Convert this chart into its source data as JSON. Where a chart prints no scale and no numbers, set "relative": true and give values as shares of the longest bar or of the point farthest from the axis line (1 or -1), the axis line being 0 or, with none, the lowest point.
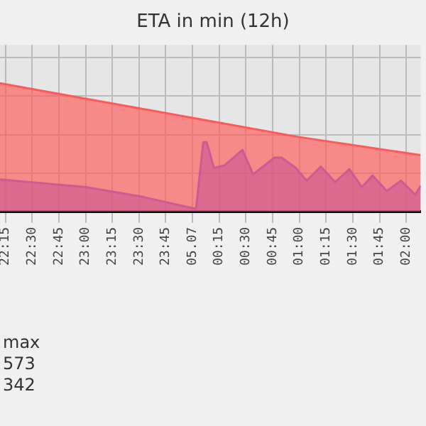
{
  "chart_data": {
    "type": "area",
    "title": "ETA in min (12h)",
    "relative": true,
    "grid": true,
    "legend": false,
    "xlim": [
      "--07-04T22:12",
      "--07-05T02:08"
    ],
    "xticks": [
      {
        "value": "--07-04T22:15",
        "label": "22:15"
      },
      {
        "value": "--07-04T22:30",
        "label": "22:30"
      },
      {
        "value": "--07-04T22:45",
        "label": "22:45"
      },
      {
        "value": "--07-04T23:00",
        "label": "23:00"
      },
      {
        "value": "--07-04T23:15",
        "label": "23:15"
      },
      {
        "value": "--07-04T23:30",
        "label": "23:30"
      },
      {
        "value": "--07-04T23:45",
        "label": "23:45"
      },
      {
        "value": "--07-05T00:00",
        "label": "05.07"
      },
      {
        "value": "--07-05T00:15",
        "label": "00:15"
      },
      {
        "value": "--07-05T00:30",
        "label": "00:30"
      },
      {
        "value": "--07-05T00:45",
        "label": "00:45"
      },
      {
        "value": "--07-05T01:00",
        "label": "01:00"
      },
      {
        "value": "--07-05T01:15",
        "label": "01:15"
      },
      {
        "value": "--07-05T01:30",
        "label": "01:30"
      },
      {
        "value": "--07-05T01:45",
        "label": "01:45"
      },
      {
        "value": "--07-05T02:00",
        "label": "02:00"
      }
    ],
    "series": [
      {
        "color": "#ff5a5a",
        "x": [
          "--07-04T22:12",
          "--07-04T23:00",
          "--07-05T00:00",
          "--07-05T01:00",
          "--07-05T02:08"
        ],
        "values": [
          1,
          0.88,
          0.73,
          0.58,
          0.44
        ]
      },
      {
        "color": "#6a5cff",
        "x": [
          "--07-04T22:12",
          "--07-04T23:00",
          "--07-04T23:30",
          "--07-05T00:02",
          "--07-05T00:06",
          "--07-05T00:08",
          "--07-05T00:12",
          "--07-05T00:18",
          "--07-05T00:28",
          "--07-05T00:34",
          "--07-05T00:46",
          "--07-05T00:50",
          "--07-05T00:58",
          "--07-05T01:04",
          "--07-05T01:12",
          "--07-05T01:20",
          "--07-05T01:28",
          "--07-05T01:35",
          "--07-05T01:41",
          "--07-05T01:49",
          "--07-05T01:57",
          "--07-05T02:05",
          "--07-05T02:08"
        ],
        "values": [
          0.25,
          0.19,
          0.12,
          0.02,
          0.54,
          0.54,
          0.34,
          0.36,
          0.48,
          0.29,
          0.42,
          0.42,
          0.34,
          0.24,
          0.35,
          0.23,
          0.33,
          0.19,
          0.28,
          0.16,
          0.24,
          0.13,
          0.2
        ]
      }
    ],
    "annotations": [
      "max",
      "573",
      "342"
    ]
  }
}
